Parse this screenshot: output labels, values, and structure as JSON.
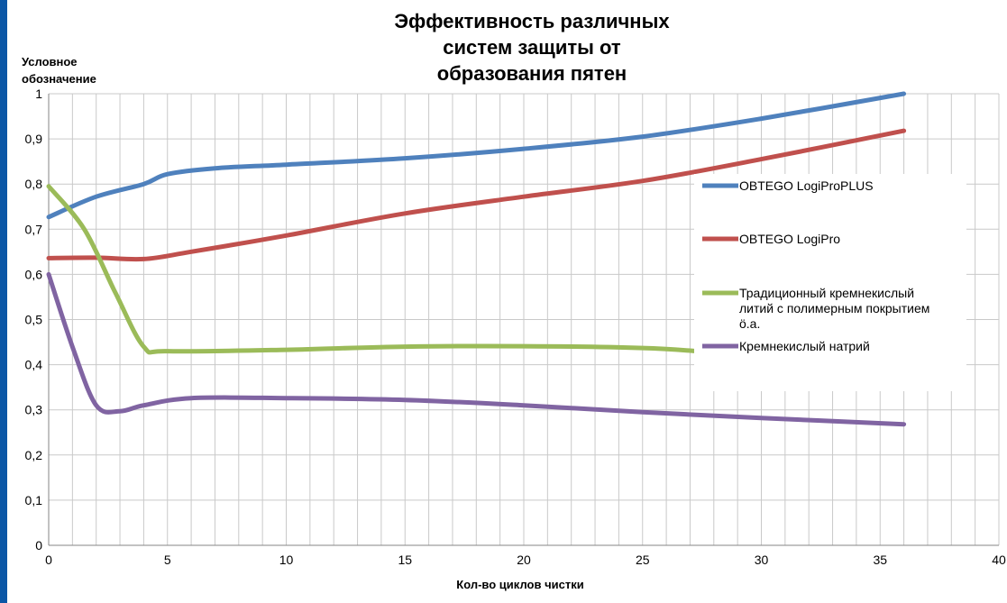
{
  "chart_data": {
    "type": "line",
    "title_lines": [
      "Эффективность различных",
      "систем защиты от",
      "образования пятен"
    ],
    "ylabel_lines": [
      "Условное",
      "обозначение"
    ],
    "xlabel": "Кол-во циклов чистки",
    "xlim": [
      0,
      40
    ],
    "ylim": [
      0,
      1
    ],
    "x_ticks": [
      "0",
      "5",
      "10",
      "15",
      "20",
      "25",
      "30",
      "35",
      "40"
    ],
    "y_ticks": [
      "0",
      "0,1",
      "0,2",
      "0,3",
      "0,4",
      "0,5",
      "0,6",
      "0,7",
      "0,8",
      "0,9",
      "1"
    ],
    "grid": true,
    "legend_position": "right",
    "series": [
      {
        "name_lines": [
          "OBTEGO LogiProPLUS"
        ],
        "color": "#4f81bd",
        "points": [
          [
            0,
            0.727
          ],
          [
            2,
            0.772
          ],
          [
            4,
            0.8
          ],
          [
            5,
            0.822
          ],
          [
            7,
            0.835
          ],
          [
            10,
            0.843
          ],
          [
            15,
            0.857
          ],
          [
            20,
            0.878
          ],
          [
            25,
            0.905
          ],
          [
            30,
            0.945
          ],
          [
            36,
            1.0
          ]
        ]
      },
      {
        "name_lines": [
          "OBTEGO LogiPro"
        ],
        "color": "#c0504d",
        "points": [
          [
            0,
            0.636
          ],
          [
            2,
            0.637
          ],
          [
            4,
            0.634
          ],
          [
            6,
            0.65
          ],
          [
            10,
            0.686
          ],
          [
            15,
            0.735
          ],
          [
            20,
            0.772
          ],
          [
            25,
            0.807
          ],
          [
            30,
            0.855
          ],
          [
            36,
            0.918
          ]
        ]
      },
      {
        "name_lines": [
          "Традиционный кремнекислый",
          "литий с полимерным покрытием",
          "ö.a."
        ],
        "color": "#9bbb59",
        "points": [
          [
            0,
            0.795
          ],
          [
            1.5,
            0.7
          ],
          [
            2.8,
            0.56
          ],
          [
            4,
            0.44
          ],
          [
            5,
            0.43
          ],
          [
            10,
            0.433
          ],
          [
            15,
            0.44
          ],
          [
            20,
            0.441
          ],
          [
            25,
            0.437
          ],
          [
            27.3,
            0.43
          ]
        ]
      },
      {
        "name_lines": [
          "Кремнекислый натрий"
        ],
        "color": "#8064a2",
        "points": [
          [
            0,
            0.6
          ],
          [
            1,
            0.44
          ],
          [
            2,
            0.31
          ],
          [
            3,
            0.297
          ],
          [
            4,
            0.31
          ],
          [
            6,
            0.326
          ],
          [
            10,
            0.326
          ],
          [
            15,
            0.322
          ],
          [
            20,
            0.31
          ],
          [
            25,
            0.295
          ],
          [
            30,
            0.282
          ],
          [
            36,
            0.268
          ]
        ]
      }
    ]
  }
}
